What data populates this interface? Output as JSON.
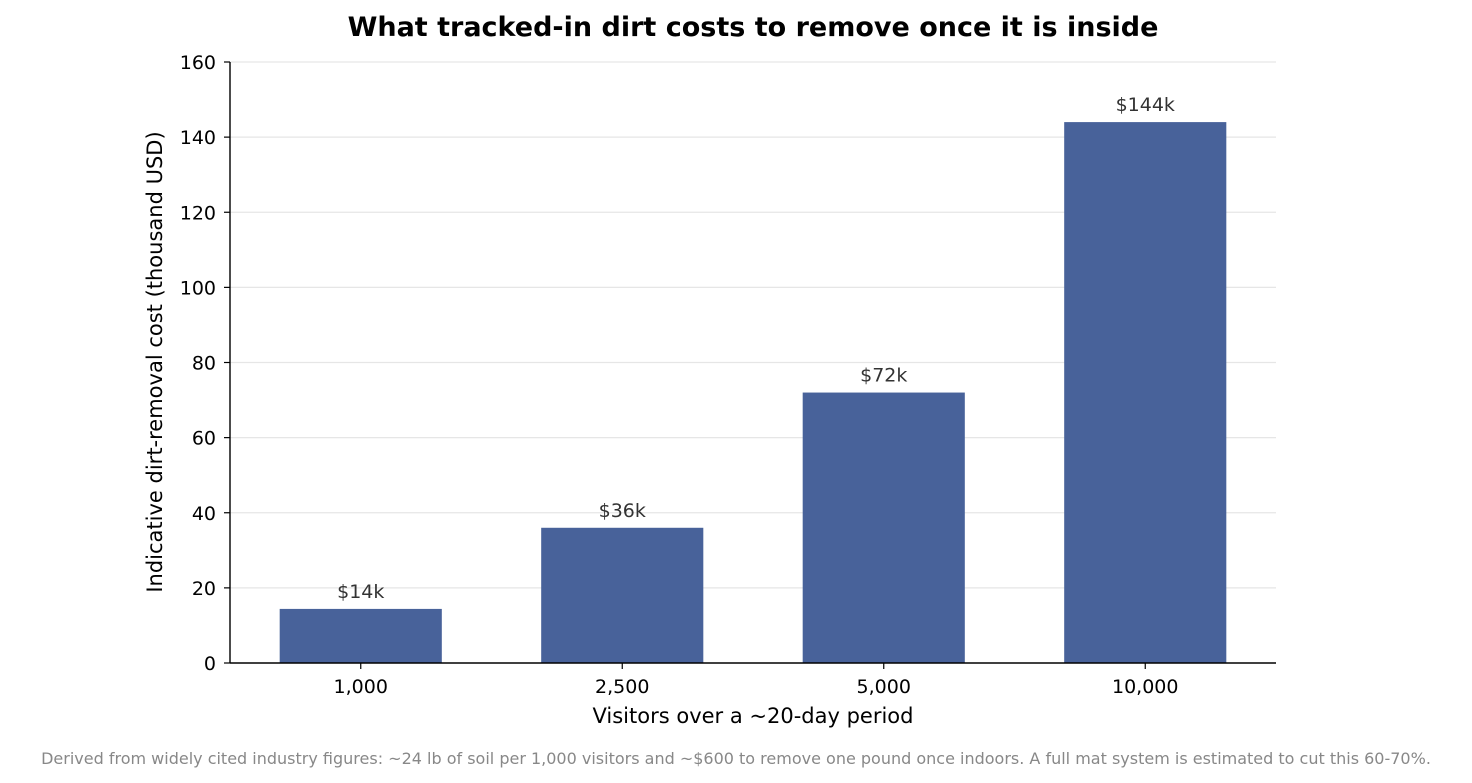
{
  "chart_data": {
    "type": "bar",
    "title": "What tracked-in dirt costs to remove once it is inside",
    "xlabel": "Visitors over a ~20-day period",
    "ylabel": "Indicative dirt-removal cost (thousand USD)",
    "categories": [
      "1,000",
      "2,500",
      "5,000",
      "10,000"
    ],
    "values": [
      14.4,
      36,
      72,
      144
    ],
    "data_labels": [
      "$14k",
      "$36k",
      "$72k",
      "$144k"
    ],
    "ylim": [
      0,
      160
    ],
    "yticks": [
      0,
      20,
      40,
      60,
      80,
      100,
      120,
      140,
      160
    ],
    "ytick_labels": [
      "0",
      "20",
      "40",
      "60",
      "80",
      "100",
      "120",
      "140",
      "160"
    ],
    "grid": "horizontal",
    "bar_color": "#48629a"
  },
  "footnote": "Derived from widely cited industry figures: ~24 lb of soil per 1,000 visitors and ~$600 to remove one pound once indoors. A full mat system is estimated to cut this 60-70%."
}
